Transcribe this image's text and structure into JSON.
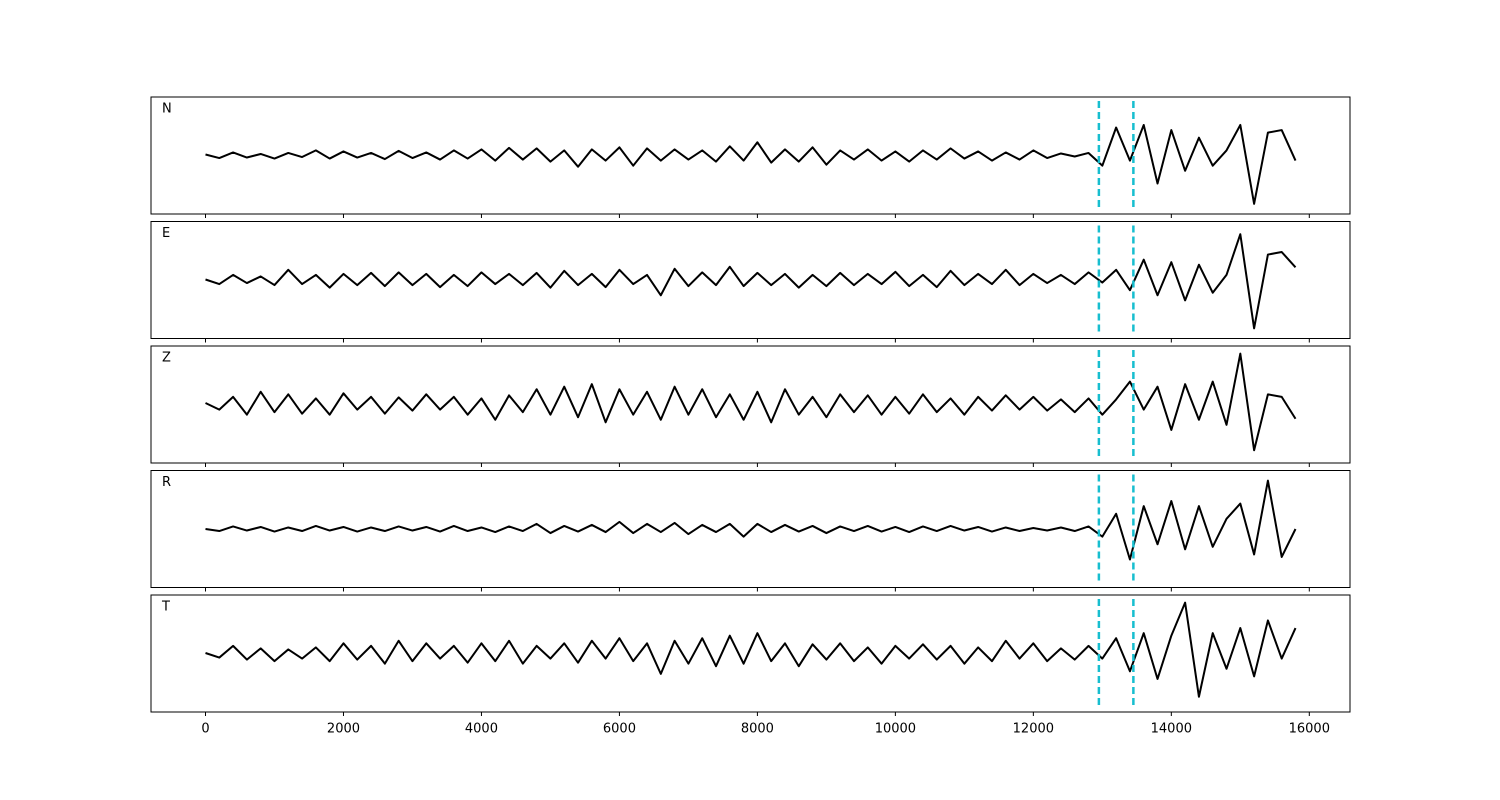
{
  "chart_data": [
    {
      "type": "line",
      "title": "N",
      "xlim": [
        -790,
        16590
      ],
      "ylim": [
        -1.15,
        1.15
      ],
      "xticks": [
        0,
        2000,
        4000,
        6000,
        8000,
        10000,
        12000,
        14000,
        16000
      ],
      "markers": [
        12950,
        13450
      ],
      "marker_color": "#17becf",
      "x": [
        0,
        200,
        400,
        600,
        800,
        1000,
        1200,
        1400,
        1600,
        1800,
        2000,
        2200,
        2400,
        2600,
        2800,
        3000,
        3200,
        3400,
        3600,
        3800,
        4000,
        4200,
        4400,
        4600,
        4800,
        5000,
        5200,
        5400,
        5600,
        5800,
        6000,
        6200,
        6400,
        6600,
        6800,
        7000,
        7200,
        7400,
        7600,
        7800,
        8000,
        8200,
        8400,
        8600,
        8800,
        9000,
        9200,
        9400,
        9600,
        9800,
        10000,
        10200,
        10400,
        10600,
        10800,
        11000,
        11200,
        11400,
        11600,
        11800,
        12000,
        12200,
        12400,
        12600,
        12800,
        13000,
        13200,
        13400,
        13600,
        13800,
        14000,
        14200,
        14400,
        14600,
        14800,
        15000,
        15200,
        15400,
        15600,
        15800
      ],
      "series": [
        {
          "color": "#000000",
          "values": [
            0.02,
            -0.05,
            0.06,
            -0.04,
            0.03,
            -0.06,
            0.05,
            -0.03,
            0.1,
            -0.06,
            0.08,
            -0.04,
            0.05,
            -0.07,
            0.09,
            -0.05,
            0.06,
            -0.08,
            0.1,
            -0.06,
            0.12,
            -0.1,
            0.15,
            -0.08,
            0.14,
            -0.12,
            0.1,
            -0.22,
            0.12,
            -0.1,
            0.16,
            -0.2,
            0.14,
            -0.1,
            0.12,
            -0.08,
            0.1,
            -0.12,
            0.18,
            -0.1,
            0.26,
            -0.14,
            0.12,
            -0.12,
            0.16,
            -0.18,
            0.1,
            -0.08,
            0.12,
            -0.1,
            0.08,
            -0.12,
            0.1,
            -0.08,
            0.14,
            -0.06,
            0.08,
            -0.1,
            0.06,
            -0.08,
            0.1,
            -0.05,
            0.04,
            -0.02,
            0.05,
            -0.2,
            0.55,
            -0.1,
            0.6,
            -0.55,
            0.5,
            -0.3,
            0.35,
            -0.2,
            0.1,
            0.6,
            -0.95,
            0.45,
            0.5,
            -0.1
          ]
        }
      ]
    },
    {
      "type": "line",
      "title": "E",
      "xlim": [
        -790,
        16590
      ],
      "ylim": [
        -1.15,
        1.15
      ],
      "xticks": [
        0,
        2000,
        4000,
        6000,
        8000,
        10000,
        12000,
        14000,
        16000
      ],
      "markers": [
        12950,
        13450
      ],
      "marker_color": "#17becf",
      "x": [
        0,
        200,
        400,
        600,
        800,
        1000,
        1200,
        1400,
        1600,
        1800,
        2000,
        2200,
        2400,
        2600,
        2800,
        3000,
        3200,
        3400,
        3600,
        3800,
        4000,
        4200,
        4400,
        4600,
        4800,
        5000,
        5200,
        5400,
        5600,
        5800,
        6000,
        6200,
        6400,
        6600,
        6800,
        7000,
        7200,
        7400,
        7600,
        7800,
        8000,
        8200,
        8400,
        8600,
        8800,
        9000,
        9200,
        9400,
        9600,
        9800,
        10000,
        10200,
        10400,
        10600,
        10800,
        11000,
        11200,
        11400,
        11600,
        11800,
        12000,
        12200,
        12400,
        12600,
        12800,
        13000,
        13200,
        13400,
        13600,
        13800,
        14000,
        14200,
        14400,
        14600,
        14800,
        15000,
        15200,
        15400,
        15600,
        15800
      ],
      "series": [
        {
          "color": "#000000",
          "values": [
            0.01,
            -0.08,
            0.1,
            -0.06,
            0.07,
            -0.1,
            0.2,
            -0.08,
            0.1,
            -0.15,
            0.12,
            -0.1,
            0.14,
            -0.12,
            0.15,
            -0.1,
            0.12,
            -0.14,
            0.1,
            -0.12,
            0.15,
            -0.08,
            0.12,
            -0.1,
            0.14,
            -0.15,
            0.18,
            -0.1,
            0.12,
            -0.14,
            0.2,
            -0.08,
            0.1,
            -0.3,
            0.22,
            -0.12,
            0.15,
            -0.1,
            0.26,
            -0.12,
            0.14,
            -0.1,
            0.12,
            -0.15,
            0.1,
            -0.12,
            0.14,
            -0.1,
            0.12,
            -0.08,
            0.16,
            -0.12,
            0.1,
            -0.14,
            0.18,
            -0.1,
            0.12,
            -0.08,
            0.2,
            -0.1,
            0.12,
            -0.06,
            0.1,
            -0.08,
            0.15,
            -0.05,
            0.2,
            -0.2,
            0.4,
            -0.3,
            0.35,
            -0.4,
            0.3,
            -0.25,
            0.1,
            0.9,
            -0.95,
            0.5,
            0.55,
            0.25
          ]
        }
      ]
    },
    {
      "type": "line",
      "title": "Z",
      "xlim": [
        -790,
        16590
      ],
      "ylim": [
        -1.15,
        1.15
      ],
      "xticks": [
        0,
        2000,
        4000,
        6000,
        8000,
        10000,
        12000,
        14000,
        16000
      ],
      "markers": [
        12950,
        13450
      ],
      "marker_color": "#17becf",
      "x": [
        0,
        200,
        400,
        600,
        800,
        1000,
        1200,
        1400,
        1600,
        1800,
        2000,
        2200,
        2400,
        2600,
        2800,
        3000,
        3200,
        3400,
        3600,
        3800,
        4000,
        4200,
        4400,
        4600,
        4800,
        5000,
        5200,
        5400,
        5600,
        5800,
        6000,
        6200,
        6400,
        6600,
        6800,
        7000,
        7200,
        7400,
        7600,
        7800,
        8000,
        8200,
        8400,
        8600,
        8800,
        9000,
        9200,
        9400,
        9600,
        9800,
        10000,
        10200,
        10400,
        10600,
        10800,
        11000,
        11200,
        11400,
        11600,
        11800,
        12000,
        12200,
        12400,
        12600,
        12800,
        13000,
        13200,
        13400,
        13600,
        13800,
        14000,
        14200,
        14400,
        14600,
        14800,
        15000,
        15200,
        15400,
        15600,
        15800
      ],
      "series": [
        {
          "color": "#000000",
          "values": [
            0.03,
            -0.1,
            0.15,
            -0.2,
            0.25,
            -0.15,
            0.2,
            -0.18,
            0.12,
            -0.2,
            0.22,
            -0.1,
            0.15,
            -0.18,
            0.14,
            -0.12,
            0.2,
            -0.1,
            0.15,
            -0.2,
            0.12,
            -0.3,
            0.18,
            -0.15,
            0.3,
            -0.2,
            0.35,
            -0.25,
            0.4,
            -0.35,
            0.3,
            -0.2,
            0.25,
            -0.3,
            0.35,
            -0.2,
            0.3,
            -0.25,
            0.2,
            -0.3,
            0.25,
            -0.35,
            0.3,
            -0.2,
            0.15,
            -0.25,
            0.2,
            -0.15,
            0.18,
            -0.2,
            0.15,
            -0.18,
            0.2,
            -0.15,
            0.12,
            -0.2,
            0.15,
            -0.12,
            0.18,
            -0.1,
            0.15,
            -0.12,
            0.1,
            -0.15,
            0.12,
            -0.2,
            0.1,
            0.45,
            -0.1,
            0.35,
            -0.5,
            0.4,
            -0.3,
            0.45,
            -0.4,
            1.0,
            -0.9,
            0.2,
            0.15,
            -0.28
          ]
        }
      ]
    },
    {
      "type": "line",
      "title": "R",
      "xlim": [
        -790,
        16590
      ],
      "ylim": [
        -1.15,
        1.15
      ],
      "xticks": [
        0,
        2000,
        4000,
        6000,
        8000,
        10000,
        12000,
        14000,
        16000
      ],
      "markers": [
        12950,
        13450
      ],
      "marker_color": "#17becf",
      "x": [
        0,
        200,
        400,
        600,
        800,
        1000,
        1200,
        1400,
        1600,
        1800,
        2000,
        2200,
        2400,
        2600,
        2800,
        3000,
        3200,
        3400,
        3600,
        3800,
        4000,
        4200,
        4400,
        4600,
        4800,
        5000,
        5200,
        5400,
        5600,
        5800,
        6000,
        6200,
        6400,
        6600,
        6800,
        7000,
        7200,
        7400,
        7600,
        7800,
        8000,
        8200,
        8400,
        8600,
        8800,
        9000,
        9200,
        9400,
        9600,
        9800,
        10000,
        10200,
        10400,
        10600,
        10800,
        11000,
        11200,
        11400,
        11600,
        11800,
        12000,
        12200,
        12400,
        12600,
        12800,
        13000,
        13200,
        13400,
        13600,
        13800,
        14000,
        14200,
        14400,
        14600,
        14800,
        15000,
        15200,
        15400,
        15600,
        15800
      ],
      "series": [
        {
          "color": "#000000",
          "values": [
            0.0,
            -0.04,
            0.05,
            -0.03,
            0.04,
            -0.05,
            0.03,
            -0.04,
            0.06,
            -0.03,
            0.04,
            -0.05,
            0.03,
            -0.04,
            0.05,
            -0.03,
            0.04,
            -0.05,
            0.06,
            -0.04,
            0.03,
            -0.06,
            0.05,
            -0.04,
            0.1,
            -0.08,
            0.06,
            -0.05,
            0.08,
            -0.06,
            0.14,
            -0.08,
            0.1,
            -0.06,
            0.12,
            -0.1,
            0.08,
            -0.06,
            0.1,
            -0.15,
            0.1,
            -0.06,
            0.08,
            -0.05,
            0.06,
            -0.08,
            0.05,
            -0.04,
            0.06,
            -0.05,
            0.04,
            -0.06,
            0.05,
            -0.04,
            0.06,
            -0.03,
            0.04,
            -0.05,
            0.03,
            -0.04,
            0.02,
            -0.03,
            0.03,
            -0.04,
            0.05,
            -0.15,
            0.3,
            -0.6,
            0.45,
            -0.3,
            0.55,
            -0.4,
            0.45,
            -0.35,
            0.2,
            0.5,
            -0.5,
            0.95,
            -0.55,
            0.0
          ]
        }
      ]
    },
    {
      "type": "line",
      "title": "T",
      "xlim": [
        -790,
        16590
      ],
      "ylim": [
        -1.15,
        1.15
      ],
      "xticks": [
        0,
        2000,
        4000,
        6000,
        8000,
        10000,
        12000,
        14000,
        16000
      ],
      "markers": [
        12950,
        13450
      ],
      "marker_color": "#17becf",
      "x": [
        0,
        200,
        400,
        600,
        800,
        1000,
        1200,
        1400,
        1600,
        1800,
        2000,
        2200,
        2400,
        2600,
        2800,
        3000,
        3200,
        3400,
        3600,
        3800,
        4000,
        4200,
        4400,
        4600,
        4800,
        5000,
        5200,
        5400,
        5600,
        5800,
        6000,
        6200,
        6400,
        6600,
        6800,
        7000,
        7200,
        7400,
        7600,
        7800,
        8000,
        8200,
        8400,
        8600,
        8800,
        9000,
        9200,
        9400,
        9600,
        9800,
        10000,
        10200,
        10400,
        10600,
        10800,
        11000,
        11200,
        11400,
        11600,
        11800,
        12000,
        12200,
        12400,
        12600,
        12800,
        13000,
        13200,
        13400,
        13600,
        13800,
        14000,
        14200,
        14400,
        14600,
        14800,
        15000,
        15200,
        15400,
        15600,
        15800
      ],
      "series": [
        {
          "color": "#000000",
          "values": [
            0.01,
            -0.08,
            0.15,
            -0.12,
            0.1,
            -0.15,
            0.08,
            -0.1,
            0.12,
            -0.15,
            0.2,
            -0.12,
            0.15,
            -0.2,
            0.25,
            -0.15,
            0.2,
            -0.1,
            0.15,
            -0.18,
            0.2,
            -0.15,
            0.25,
            -0.2,
            0.15,
            -0.1,
            0.2,
            -0.18,
            0.25,
            -0.1,
            0.3,
            -0.15,
            0.2,
            -0.4,
            0.25,
            -0.2,
            0.3,
            -0.25,
            0.35,
            -0.2,
            0.4,
            -0.15,
            0.2,
            -0.25,
            0.18,
            -0.12,
            0.2,
            -0.15,
            0.12,
            -0.2,
            0.15,
            -0.1,
            0.18,
            -0.12,
            0.15,
            -0.2,
            0.12,
            -0.15,
            0.25,
            -0.1,
            0.2,
            -0.15,
            0.1,
            -0.12,
            0.15,
            -0.1,
            0.3,
            -0.35,
            0.4,
            -0.5,
            0.35,
            1.0,
            -0.85,
            0.4,
            -0.3,
            0.5,
            -0.45,
            0.65,
            -0.1,
            0.5
          ]
        }
      ]
    }
  ]
}
